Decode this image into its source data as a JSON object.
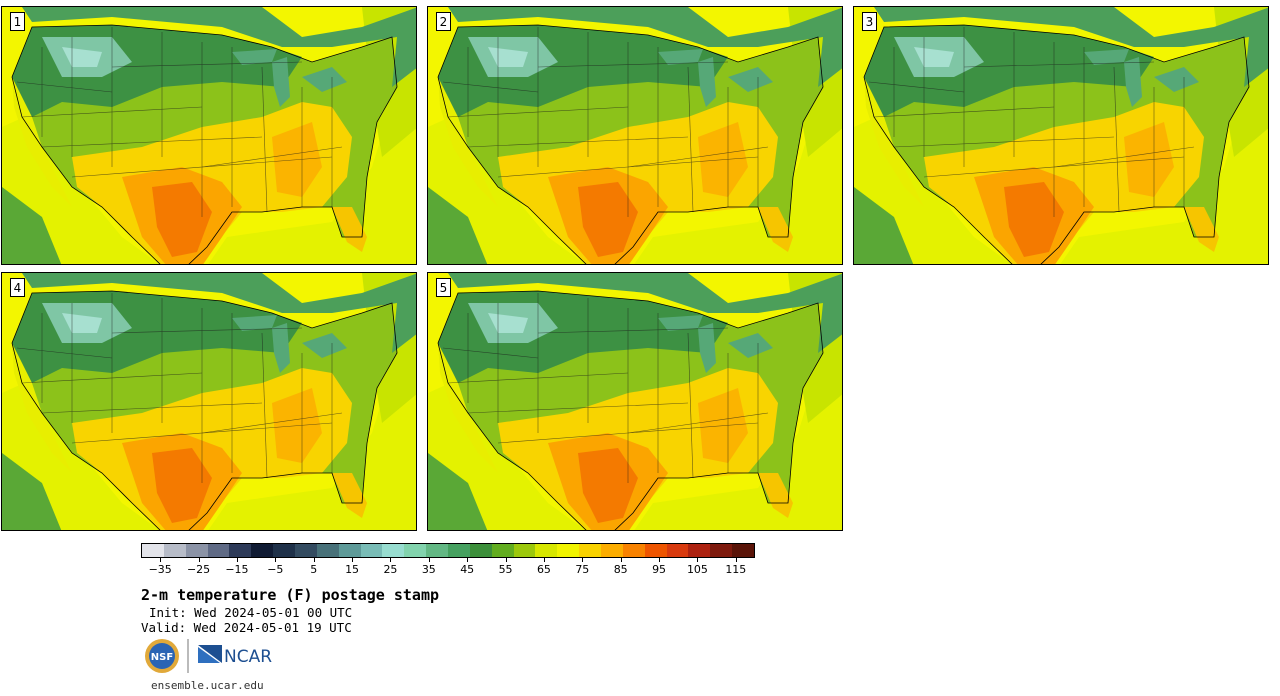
{
  "panels": [
    {
      "label": "1"
    },
    {
      "label": "2"
    },
    {
      "label": "3"
    },
    {
      "label": "4"
    },
    {
      "label": "5"
    }
  ],
  "colorbar": {
    "colors": [
      "#e3e4ea",
      "#b7bcc8",
      "#8b93a6",
      "#5f6a85",
      "#2d3a58",
      "#101b33",
      "#1f3149",
      "#334b60",
      "#487179",
      "#5e9a98",
      "#79bcb6",
      "#98ddd0",
      "#82d3ad",
      "#63b884",
      "#46a160",
      "#3c8f3a",
      "#62ad1f",
      "#9cc80c",
      "#d7e700",
      "#f1f400",
      "#f9d200",
      "#fcad00",
      "#f88200",
      "#ee5500",
      "#d83a0e",
      "#ad2210",
      "#7e1a0d",
      "#5a1408"
    ],
    "tick_labels": [
      "-35",
      "-25",
      "-15",
      "-5",
      "5",
      "15",
      "25",
      "35",
      "45",
      "55",
      "65",
      "75",
      "85",
      "95",
      "105",
      "115"
    ],
    "min": -40,
    "max": 120
  },
  "title": "2-m temperature (F) postage stamp",
  "init_text": "Init: Wed 2024-05-01 00 UTC",
  "valid_text": "Valid: Wed 2024-05-01 19 UTC",
  "logos": {
    "nsf": "NSF",
    "ncar": "NCAR"
  },
  "footer_url": "ensemble.ucar.edu"
}
